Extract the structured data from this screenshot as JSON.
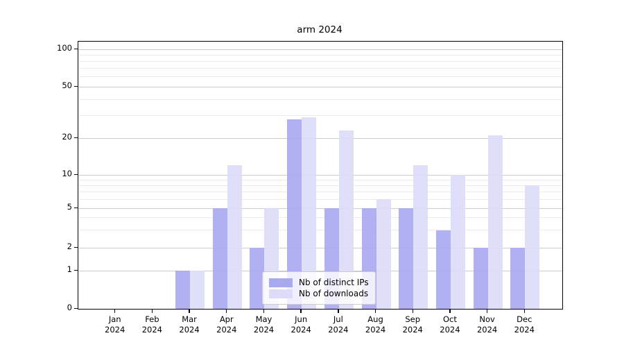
{
  "chart_data": {
    "type": "bar",
    "title": "arm 2024",
    "categories": [
      "Jan 2024",
      "Feb 2024",
      "Mar 2024",
      "Apr 2024",
      "May 2024",
      "Jun 2024",
      "Jul 2024",
      "Aug 2024",
      "Sep 2024",
      "Oct 2024",
      "Nov 2024",
      "Dec 2024"
    ],
    "series": [
      {
        "name": "Nb of distinct IPs",
        "color": "#a9a9f1",
        "values": [
          0,
          0,
          1,
          5,
          2,
          28,
          5,
          5,
          5,
          3,
          2,
          2
        ]
      },
      {
        "name": "Nb of downloads",
        "color": "#dcdcfa",
        "values": [
          0,
          0,
          1,
          12,
          5,
          29,
          23,
          6,
          12,
          10,
          21,
          8
        ]
      }
    ],
    "yscale": "symlog",
    "yticks": [
      0,
      1,
      2,
      5,
      10,
      20,
      50,
      100
    ],
    "minor_yticks": [
      3,
      4,
      6,
      7,
      8,
      9,
      30,
      40,
      60,
      70,
      80,
      90
    ],
    "ylim": [
      0,
      100
    ],
    "grid": "horizontal",
    "legend_position": "lower center inside",
    "bar_colors": {
      "distinct_ips": "#a9a9f1",
      "downloads": "#dcdcfa"
    },
    "gridline_colors": {
      "major": "#cbcbcb",
      "minor": "#ebebeb"
    }
  }
}
